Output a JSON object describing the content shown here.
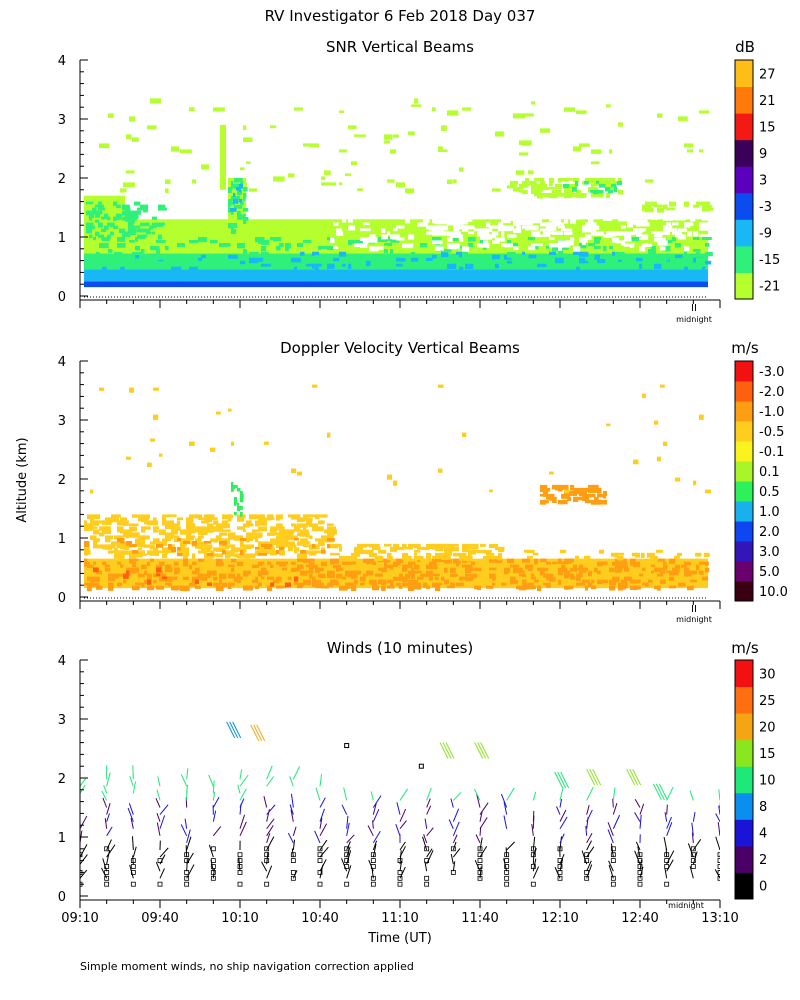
{
  "header": {
    "title": "RV Investigator   6 Feb 2018 Day 037",
    "footnote": "Simple moment winds, no ship navigation correction applied"
  },
  "shared": {
    "ylabel": "Altitude (km)",
    "xlabel": "Time (UT)",
    "midnight_label": "midnight",
    "midnight_marker": "II"
  },
  "chart_data": [
    {
      "type": "heatmap",
      "title": "SNR Vertical Beams",
      "unit": "dB",
      "y_ticks": [
        "0",
        "1",
        "2",
        "3",
        "4"
      ],
      "ylim": [
        0,
        4
      ],
      "xlim": [
        "09:10",
        "13:10"
      ],
      "colorbar": {
        "labels": [
          "-21",
          "-15",
          "-9",
          "-3",
          "3",
          "9",
          "15",
          "21",
          "27"
        ],
        "colors": [
          "#b5ff2e",
          "#2ff07a",
          "#19b7f5",
          "#0b4cf0",
          "#5b00bd",
          "#3b005a",
          "#f21a12",
          "#ff7a0a",
          "#ffbd18"
        ]
      },
      "layers": [
        {
          "from_km": 0.15,
          "to_km": 0.25,
          "snr_db": 0,
          "color": "#0b4cf0"
        },
        {
          "from_km": 0.25,
          "to_km": 0.45,
          "snr_db": -9,
          "color": "#19b7f5"
        },
        {
          "from_km": 0.45,
          "to_km": 0.75,
          "snr_db": -15,
          "color": "#2ff07a"
        },
        {
          "from_km": 0.75,
          "to_km": 1.35,
          "snr_db": -21,
          "color": "#b5ff2e"
        }
      ],
      "features": [
        {
          "time_start": "09:44",
          "time_end": "10:12",
          "alt_low_km": 0.8,
          "alt_high_km": 2.9,
          "note": "vertical plume"
        },
        {
          "time_start": "11:58",
          "time_end": "12:20",
          "alt_low_km": 1.7,
          "alt_high_km": 2.0,
          "note": "cloud layer"
        }
      ]
    },
    {
      "type": "heatmap",
      "title": "Doppler Velocity Vertical Beams",
      "unit": "m/s",
      "y_ticks": [
        "0",
        "1",
        "2",
        "3",
        "4"
      ],
      "ylim": [
        0,
        4
      ],
      "xlim": [
        "09:10",
        "13:10"
      ],
      "colorbar": {
        "labels": [
          "10.0",
          "5.0",
          "3.0",
          "2.0",
          "1.0",
          "0.5",
          "0.1",
          "-0.1",
          "-0.5",
          "-1.0",
          "-2.0",
          "-3.0"
        ],
        "colors": [
          "#3a0012",
          "#6a0070",
          "#3216b8",
          "#0e46f2",
          "#19b0ee",
          "#2ef05a",
          "#aaf52a",
          "#fbf21e",
          "#ffcd1e",
          "#ff9e12",
          "#ff6010",
          "#f21010"
        ]
      },
      "layers": [
        {
          "from_km": 0.15,
          "to_km": 0.65,
          "velocity_ms": -1.0,
          "color": "#ff9e12"
        },
        {
          "from_km": 0.65,
          "to_km": 1.4,
          "velocity_ms": -0.5,
          "color": "#ffcd1e"
        }
      ]
    },
    {
      "type": "scatter",
      "title": "Winds (10 minutes)",
      "unit": "m/s",
      "y_ticks": [
        "0",
        "1",
        "2",
        "3",
        "4"
      ],
      "ylim": [
        0,
        4
      ],
      "xlim": [
        "09:10",
        "13:10"
      ],
      "x_ticks": [
        "09:10",
        "09:40",
        "10:10",
        "10:40",
        "11:10",
        "11:40",
        "12:10",
        "12:40",
        "13:10"
      ],
      "colorbar": {
        "labels": [
          "0",
          "2",
          "4",
          "8",
          "10",
          "15",
          "20",
          "25",
          "30"
        ],
        "colors": [
          "#000000",
          "#4a0066",
          "#1a14d8",
          "#0a8ff0",
          "#1ee878",
          "#8ae61e",
          "#f5a514",
          "#ff6e10",
          "#f21010"
        ]
      },
      "wind_profiles_minutes_after_0910": [
        0,
        10,
        20,
        30,
        40,
        50,
        60,
        70,
        80,
        90,
        100,
        110,
        120,
        130,
        140,
        150,
        160,
        170,
        180,
        190,
        200,
        210,
        220,
        230,
        240
      ],
      "typical_speeds": [
        {
          "alt_range_km": "0-0.8",
          "speed_ms": 2
        },
        {
          "alt_range_km": "0.8-1.8",
          "speed_ms": 4
        },
        {
          "alt_range_km": "1.8-2.2",
          "speed_ms": 12
        },
        {
          "alt_range_km": "2.4-2.9",
          "speed_ms": 18
        }
      ]
    }
  ]
}
